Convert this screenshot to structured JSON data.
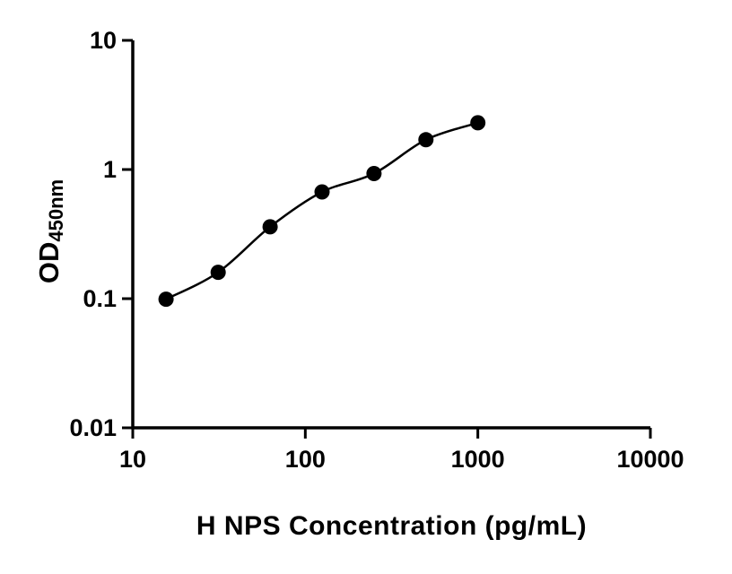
{
  "chart_data": {
    "type": "scatter",
    "fit": "smooth standard curve through points (log-log)",
    "title": "",
    "xlabel": "H NPS Concentration (pg/mL)",
    "ylabel": "OD",
    "ylabel_subscript": "450nm",
    "x": [
      15.6,
      31.25,
      62.5,
      125,
      250,
      500,
      1000
    ],
    "y": [
      0.099,
      0.16,
      0.36,
      0.67,
      0.93,
      1.7,
      2.3
    ],
    "xscale": "log",
    "yscale": "log",
    "xlim": [
      10,
      10000
    ],
    "ylim": [
      0.01,
      10
    ],
    "x_ticks": [
      10,
      100,
      1000,
      10000
    ],
    "y_ticks": [
      0.01,
      0.1,
      1,
      10
    ],
    "x_tick_labels": [
      "10",
      "100",
      "1000",
      "10000"
    ],
    "y_tick_labels": [
      "0.01",
      "0.1",
      "1",
      "10"
    ],
    "grid": false,
    "legend": false,
    "axis_color": "#000000",
    "line_color": "#000000",
    "marker_color": "#000000",
    "background_color": "#ffffff"
  }
}
